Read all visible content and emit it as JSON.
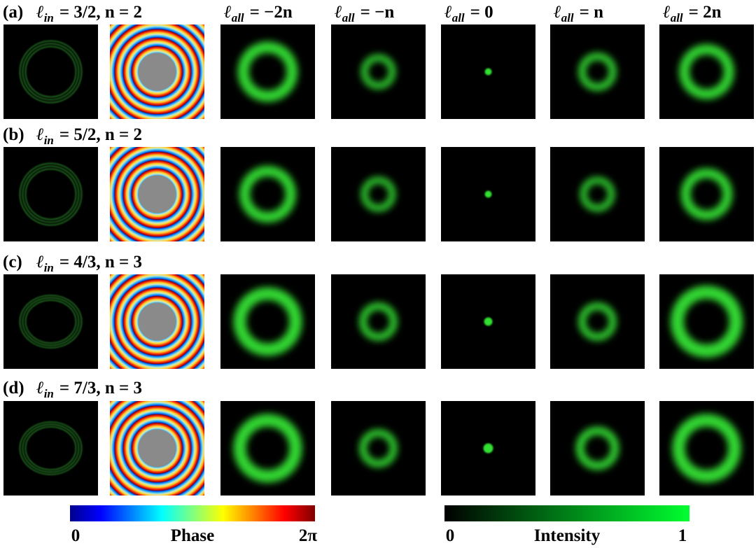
{
  "rows": [
    {
      "label": "(a)",
      "formula": {
        "symbol": "ℓ",
        "subscript": "in",
        "rest": "= 3/2, n = 2"
      }
    },
    {
      "label": "(b)",
      "formula": {
        "symbol": "ℓ",
        "subscript": "in",
        "rest": "= 5/2, n = 2"
      }
    },
    {
      "label": "(c)",
      "formula": {
        "symbol": "ℓ",
        "subscript": "in",
        "rest": "= 4/3, n = 3"
      }
    },
    {
      "label": "(d)",
      "formula": {
        "symbol": "ℓ",
        "subscript": "in",
        "rest": "= 7/3, n = 3"
      }
    }
  ],
  "columns": [
    {
      "symbol": "ℓ",
      "subscript": "all",
      "rest": "= −2n"
    },
    {
      "symbol": "ℓ",
      "subscript": "all",
      "rest": "= −n"
    },
    {
      "symbol": "ℓ",
      "subscript": "all",
      "rest": "= 0"
    },
    {
      "symbol": "ℓ",
      "subscript": "all",
      "rest": "= n"
    },
    {
      "symbol": "ℓ",
      "subscript": "all",
      "rest": "= 2n"
    }
  ],
  "colorbars": [
    {
      "title": "Phase",
      "min": "0",
      "max": "2π"
    },
    {
      "title": "Intensity",
      "min": "0",
      "max": "1"
    }
  ]
}
